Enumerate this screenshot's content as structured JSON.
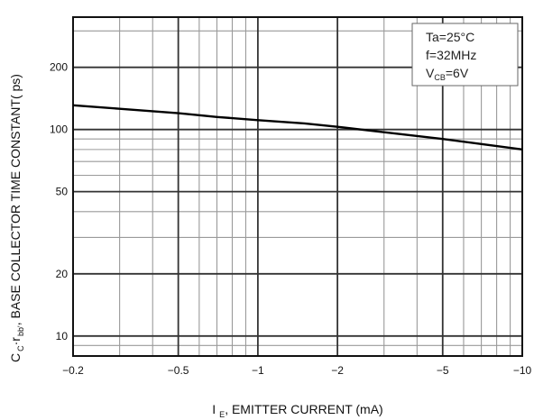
{
  "chart_data": {
    "type": "line",
    "x_scale": "log",
    "y_scale": "log",
    "grid": true,
    "xlabel": {
      "main": "I",
      "sub": "E",
      "rest": ", EMITTER CURRENT  (mA)"
    },
    "ylabel": {
      "main1": "C",
      "sub1": "C",
      "main2": "·r",
      "sub2": "bb'",
      "rest": ", BASE COLLECTOR TIME CONSTANT( ps)"
    },
    "xlim": [
      0.2,
      10
    ],
    "ylim": [
      8,
      350
    ],
    "x_ticks": [
      {
        "value": 0.2,
        "label": "−0.2"
      },
      {
        "value": 0.5,
        "label": "−0.5"
      },
      {
        "value": 1,
        "label": "−1"
      },
      {
        "value": 2,
        "label": "−2"
      },
      {
        "value": 5,
        "label": "−5"
      },
      {
        "value": 10,
        "label": "−10"
      }
    ],
    "y_ticks": [
      {
        "value": 10,
        "label": "10"
      },
      {
        "value": 20,
        "label": "20"
      },
      {
        "value": 50,
        "label": "50"
      },
      {
        "value": 100,
        "label": "100"
      },
      {
        "value": 200,
        "label": "200"
      }
    ],
    "legend": {
      "placement": "top-right",
      "lines": [
        {
          "text": "Ta=25°C"
        },
        {
          "text": "f=32MHz"
        },
        {
          "main": "V",
          "sub": "CB",
          "rest": "=6V"
        }
      ]
    },
    "series": [
      {
        "x": [
          0.2,
          0.3,
          0.5,
          0.7,
          1,
          1.5,
          2,
          3,
          5,
          7,
          10
        ],
        "y": [
          131,
          126,
          120,
          115,
          111,
          107,
          103,
          97,
          90,
          85,
          80
        ]
      }
    ]
  }
}
